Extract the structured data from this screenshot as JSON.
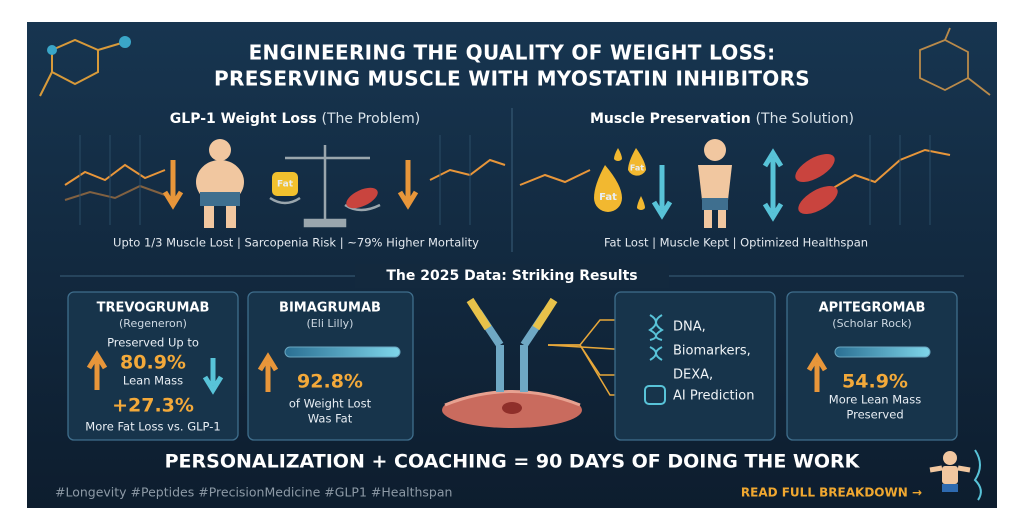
{
  "header": {
    "title_line1": "ENGINEERING THE QUALITY OF WEIGHT LOSS:",
    "title_line2": "PRESERVING MUSCLE WITH MYOSTATIN INHIBITORS"
  },
  "problem": {
    "heading": "GLP-1 Weight Loss",
    "subheading": "(The Problem)",
    "scale_label": "Fat",
    "caption": "Upto 1/3 Muscle Lost | Sarcopenia Risk | ~79% Higher Mortality"
  },
  "solution": {
    "heading": "Muscle Preservation",
    "subheading": "(The Solution)",
    "drop_labels": [
      "Fat",
      "Fat"
    ],
    "caption": "Fat Lost | Muscle Kept | Optimized Healthspan"
  },
  "results": {
    "heading": "The 2025 Data: Striking Results",
    "trevogrumab": {
      "name": "TREVOGRUMAB",
      "company": "(Regeneron)",
      "intro": "Preserved Up to",
      "stat": "80.9%",
      "stat_label": "Lean Mass",
      "stat2": "+27.3%",
      "stat2_label": "More Fat Loss vs. GLP-1"
    },
    "bimagrumab": {
      "name": "BIMAGRUMAB",
      "company": "(Eli Lilly)",
      "stat": "92.8%",
      "stat_label_lines": [
        "of Weight Lost",
        "Was Fat"
      ]
    },
    "personalization": {
      "items": [
        "DNA,",
        "Biomarkers,",
        "DEXA,",
        "AI Prediction"
      ]
    },
    "apitegromab": {
      "name": "APITEGROMAB",
      "company": "(Scholar Rock)",
      "stat": "54.9%",
      "stat_label_lines": [
        "More Lean Mass",
        "Preserved"
      ]
    }
  },
  "footer": {
    "banner": "PERSONALIZATION + COACHING = 90 DAYS OF DOING THE WORK",
    "hashtags": "#Longevity #Peptides #PrecisionMedicine #GLP1 #Healthspan",
    "cta": "READ FULL BREAKDOWN →"
  }
}
